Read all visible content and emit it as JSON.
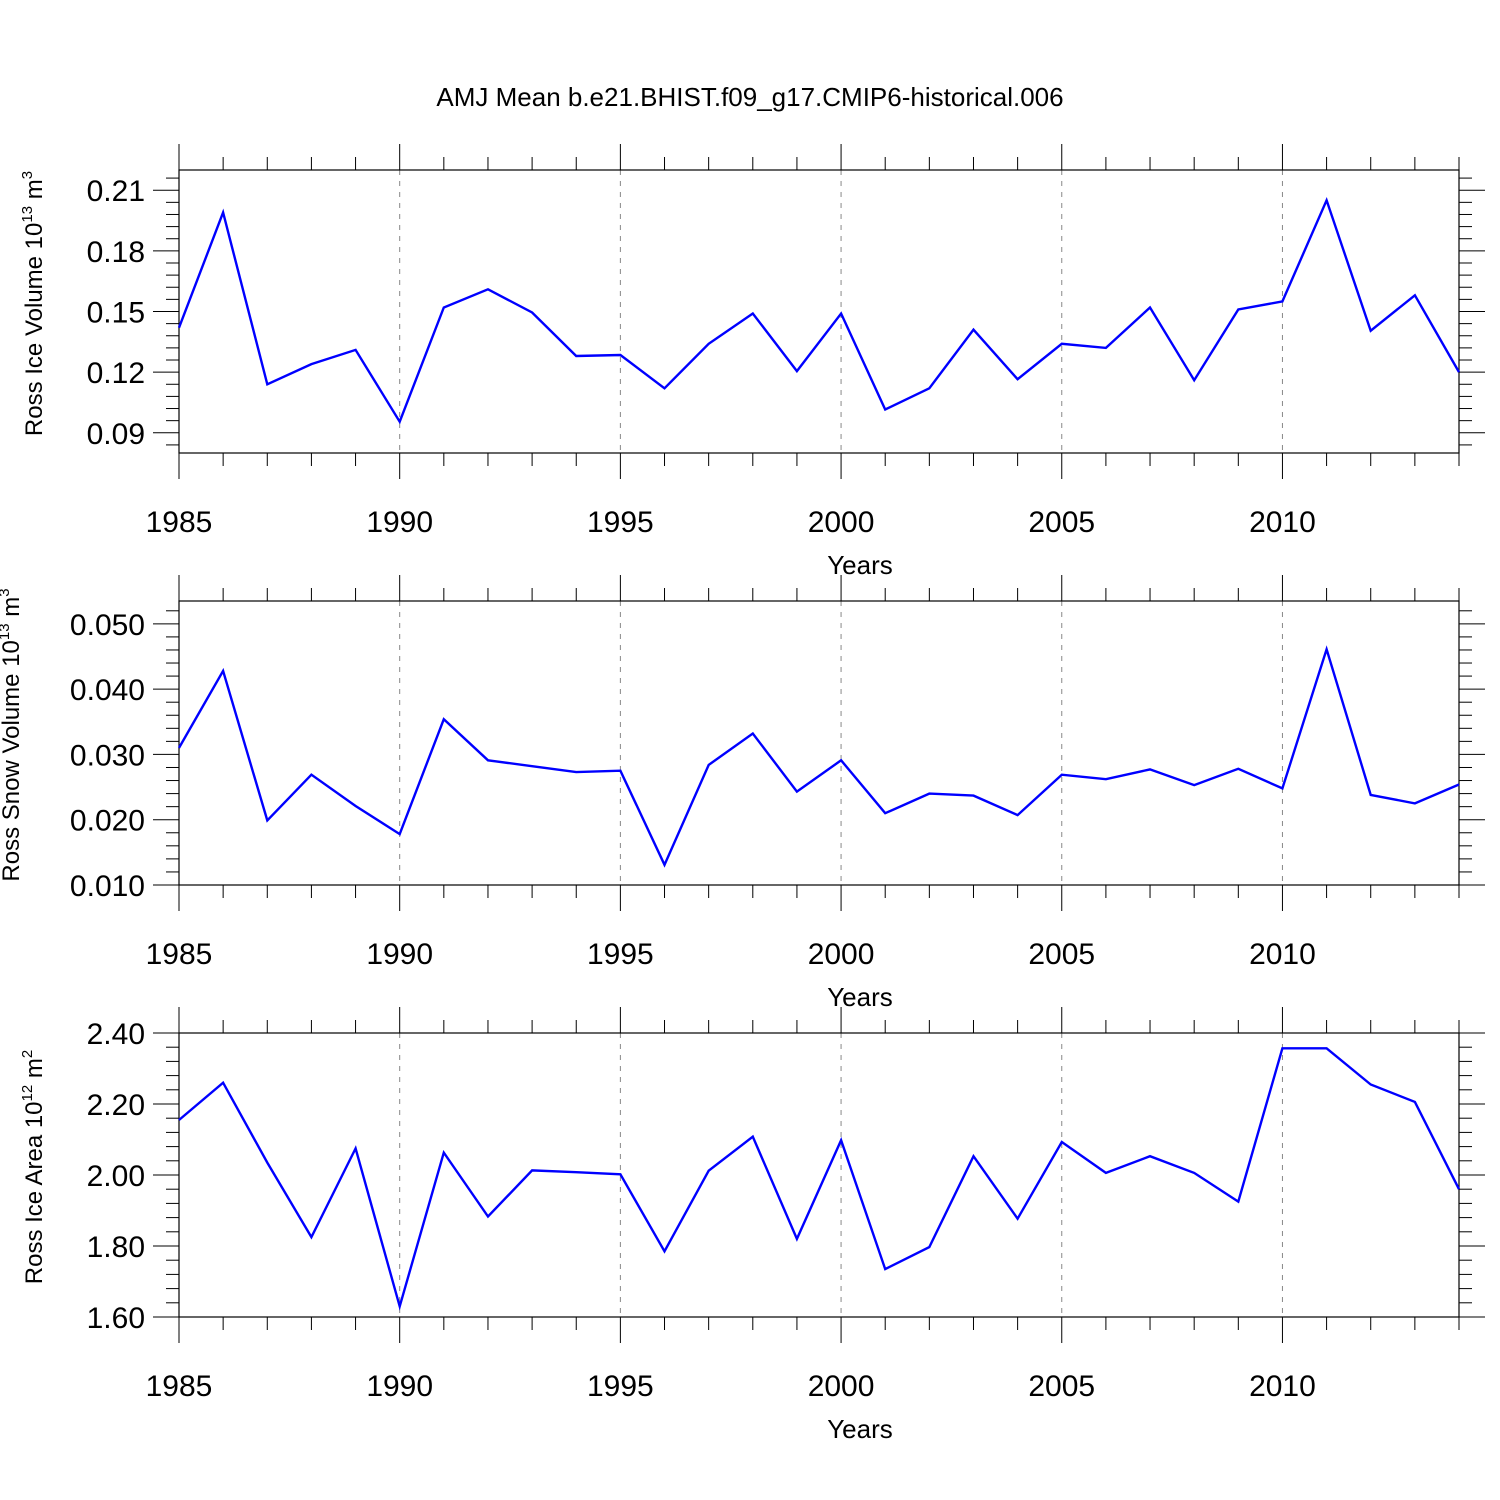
{
  "title": "AMJ Mean b.e21.BHIST.f09_g17.CMIP6-historical.006",
  "chart_data": [
    {
      "type": "line",
      "xlabel": "Years",
      "ylabel": {
        "base": "Ross Ice Volume 10",
        "exp": "13",
        "unit": " m",
        "unit_exp": "3"
      },
      "xlim": [
        1985,
        2014
      ],
      "ylim": [
        0.08,
        0.22
      ],
      "yticks": [
        0.09,
        0.12,
        0.15,
        0.18,
        0.21
      ],
      "ytick_labels": [
        "0.09",
        "0.12",
        "0.15",
        "0.18",
        "0.21"
      ],
      "xticks": [
        1985,
        1990,
        1995,
        2000,
        2005,
        2010
      ],
      "xtick_labels": [
        "1985",
        "1990",
        "1995",
        "2000",
        "2005",
        "2010"
      ],
      "grid": "vertical dashed at major x ticks",
      "line_color": "#0000ff",
      "x": [
        1985,
        1986,
        1987,
        1988,
        1989,
        1990,
        1991,
        1992,
        1993,
        1994,
        1995,
        1996,
        1997,
        1998,
        1999,
        2000,
        2001,
        2002,
        2003,
        2004,
        2005,
        2006,
        2007,
        2008,
        2009,
        2010,
        2011,
        2012,
        2013,
        2014
      ],
      "values": [
        0.142,
        0.199,
        0.114,
        0.124,
        0.131,
        0.0955,
        0.152,
        0.161,
        0.1495,
        0.128,
        0.1285,
        0.112,
        0.134,
        0.149,
        0.1205,
        0.149,
        0.1015,
        0.112,
        0.141,
        0.1165,
        0.134,
        0.132,
        0.152,
        0.116,
        0.151,
        0.155,
        0.205,
        0.1405,
        0.158,
        0.12
      ]
    },
    {
      "type": "line",
      "xlabel": "Years",
      "ylabel": {
        "base": "Ross Snow Volume 10",
        "exp": "13",
        "unit": " m",
        "unit_exp": "3"
      },
      "xlim": [
        1985,
        2014
      ],
      "ylim": [
        0.01,
        0.0535
      ],
      "yticks": [
        0.01,
        0.02,
        0.03,
        0.04,
        0.05
      ],
      "ytick_labels": [
        "0.010",
        "0.020",
        "0.030",
        "0.040",
        "0.050"
      ],
      "xticks": [
        1985,
        1990,
        1995,
        2000,
        2005,
        2010
      ],
      "xtick_labels": [
        "1985",
        "1990",
        "1995",
        "2000",
        "2005",
        "2010"
      ],
      "grid": "vertical dashed at major x ticks",
      "line_color": "#0000ff",
      "x": [
        1985,
        1986,
        1987,
        1988,
        1989,
        1990,
        1991,
        1992,
        1993,
        1994,
        1995,
        1996,
        1997,
        1998,
        1999,
        2000,
        2001,
        2002,
        2003,
        2004,
        2005,
        2006,
        2007,
        2008,
        2009,
        2010,
        2011,
        2012,
        2013,
        2014
      ],
      "values": [
        0.031,
        0.0428,
        0.0199,
        0.0269,
        0.0221,
        0.0178,
        0.0354,
        0.0291,
        0.0282,
        0.0273,
        0.0275,
        0.0131,
        0.0284,
        0.0332,
        0.0243,
        0.0291,
        0.021,
        0.024,
        0.0237,
        0.0207,
        0.0269,
        0.0262,
        0.0277,
        0.0253,
        0.0278,
        0.0248,
        0.0461,
        0.0238,
        0.0225,
        0.0254
      ]
    },
    {
      "type": "line",
      "xlabel": "Years",
      "ylabel": {
        "base": "Ross Ice Area 10",
        "exp": "12",
        "unit": " m",
        "unit_exp": "2"
      },
      "xlim": [
        1985,
        2014
      ],
      "ylim": [
        1.6,
        2.4
      ],
      "yticks": [
        1.6,
        1.8,
        2.0,
        2.2,
        2.4
      ],
      "ytick_labels": [
        "1.60",
        "1.80",
        "2.00",
        "2.20",
        "2.40"
      ],
      "xticks": [
        1985,
        1990,
        1995,
        2000,
        2005,
        2010
      ],
      "xtick_labels": [
        "1985",
        "1990",
        "1995",
        "2000",
        "2005",
        "2010"
      ],
      "grid": "vertical dashed at major x ticks",
      "line_color": "#0000ff",
      "x": [
        1985,
        1986,
        1987,
        1988,
        1989,
        1990,
        1991,
        1992,
        1993,
        1994,
        1995,
        1996,
        1997,
        1998,
        1999,
        2000,
        2001,
        2002,
        2003,
        2004,
        2005,
        2006,
        2007,
        2008,
        2009,
        2010,
        2011,
        2012,
        2013,
        2014
      ],
      "values": [
        2.155,
        2.26,
        2.035,
        1.825,
        2.075,
        1.63,
        2.063,
        1.883,
        2.013,
        2.008,
        2.002,
        1.785,
        2.012,
        2.108,
        1.82,
        2.098,
        1.735,
        1.797,
        2.053,
        1.877,
        2.093,
        2.006,
        2.053,
        2.006,
        1.925,
        2.357,
        2.357,
        2.255,
        2.206,
        1.96
      ]
    }
  ]
}
